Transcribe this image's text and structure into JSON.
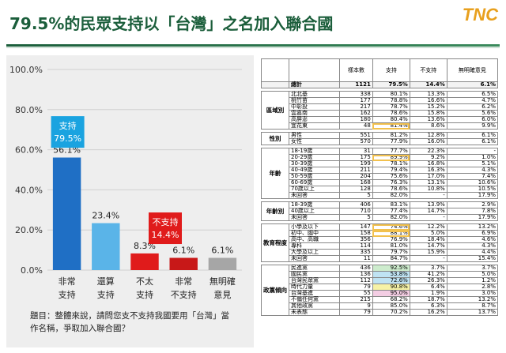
{
  "header": {
    "title": "79.5%的民眾支持以「台灣」之名加入聯合國",
    "logo": "TNC"
  },
  "chart_data": {
    "type": "bar",
    "categories": [
      "非常\n支持",
      "還算\n支持",
      "不太\n支持",
      "非常\n不支持",
      "無明確\n意見"
    ],
    "values": [
      56.1,
      23.4,
      8.3,
      6.1,
      6.1
    ],
    "value_labels": [
      "56.1%",
      "23.4%",
      "8.3%",
      "6.1%",
      "6.1%"
    ],
    "ylim": [
      0,
      100
    ],
    "yticks": [
      "0.0%",
      "20.0%",
      "40.0%",
      "60.0%",
      "80.0%",
      "100.0%"
    ],
    "colors": [
      "#1f6fc5",
      "#5ab4e8",
      "#e01b1b",
      "#c81818",
      "#a6a6a6"
    ],
    "annotations": [
      {
        "label": "支持",
        "value": "79.5%",
        "color": "#1aa3e0"
      },
      {
        "label": "不支持",
        "value": "14.4%",
        "color": "#e01b1b"
      }
    ]
  },
  "question": "題目：整體來說，請問您支不支持我國要用「台灣」當作名稱，爭取加入聯合國？",
  "table": {
    "headers": [
      "樣本數",
      "支持",
      "不支持",
      "無明確意見"
    ],
    "total": {
      "label": "總計",
      "n": "1121",
      "s": "79.5%",
      "ns": "14.4%",
      "nc": "6.1%"
    },
    "groups": [
      {
        "name": "區域別",
        "rows": [
          [
            "北北基",
            "338",
            "80.1%",
            "13.3%",
            "6.5%",
            ""
          ],
          [
            "桃竹苗",
            "177",
            "78.8%",
            "16.6%",
            "4.7%",
            ""
          ],
          [
            "中彰投",
            "217",
            "78.7%",
            "15.2%",
            "6.2%",
            ""
          ],
          [
            "雲嘉南",
            "162",
            "78.6%",
            "15.8%",
            "5.6%",
            ""
          ],
          [
            "高屏澎",
            "180",
            "80.4%",
            "13.6%",
            "6.0%",
            ""
          ],
          [
            "宜花東",
            "48",
            "81.4%",
            "8.6%",
            "9.9%",
            "hl"
          ]
        ]
      },
      {
        "name": "性別",
        "rows": [
          [
            "男性",
            "551",
            "81.2%",
            "12.8%",
            "6.1%",
            ""
          ],
          [
            "女性",
            "570",
            "77.9%",
            "16.0%",
            "6.1%",
            ""
          ]
        ]
      },
      {
        "name": "年齡",
        "rows": [
          [
            "18-19歲",
            "31",
            "77.7%",
            "22.3%",
            "-",
            ""
          ],
          [
            "20-29歲",
            "175",
            "89.9%",
            "9.2%",
            "1.0%",
            "hl"
          ],
          [
            "30-39歲",
            "199",
            "78.1%",
            "16.8%",
            "5.1%",
            ""
          ],
          [
            "40-49歲",
            "211",
            "79.4%",
            "16.3%",
            "4.3%",
            ""
          ],
          [
            "50-59歲",
            "204",
            "75.6%",
            "17.0%",
            "7.4%",
            ""
          ],
          [
            "60-69歲",
            "168",
            "76.3%",
            "13.1%",
            "10.6%",
            ""
          ],
          [
            "70歲以上",
            "128",
            "78.6%",
            "10.8%",
            "10.5%",
            ""
          ],
          [
            "未回答",
            "5",
            "82.0%",
            "-",
            "17.9%",
            ""
          ]
        ]
      },
      {
        "name": "年齡別",
        "rows": [
          [
            "18-39歲",
            "406",
            "83.1%",
            "13.9%",
            "2.9%",
            ""
          ],
          [
            "40歲以上",
            "710",
            "77.4%",
            "14.7%",
            "7.8%",
            ""
          ],
          [
            "未回答",
            "5",
            "82.0%",
            "-",
            "17.9%",
            ""
          ]
        ]
      },
      {
        "name": "教育程度",
        "rows": [
          [
            "小學及以下",
            "147",
            "74.6%",
            "12.2%",
            "13.2%",
            "hl"
          ],
          [
            "初中、國中",
            "158",
            "88.1%",
            "5.0%",
            "6.9%",
            "hl"
          ],
          [
            "高中、高職",
            "356",
            "76.9%",
            "18.4%",
            "4.6%",
            ""
          ],
          [
            "專科",
            "114",
            "81.0%",
            "14.7%",
            "4.3%",
            ""
          ],
          [
            "大學及以上",
            "335",
            "79.7%",
            "15.9%",
            "4.4%",
            ""
          ],
          [
            "未回答",
            "11",
            "84.7%",
            "-",
            "15.4%",
            ""
          ]
        ]
      },
      {
        "name": "政黨傾向",
        "rows": [
          [
            "民進黨",
            "436",
            "92.5%",
            "3.7%",
            "3.7%",
            "green"
          ],
          [
            "國民黨",
            "136",
            "53.8%",
            "41.2%",
            "5.0%",
            "blue"
          ],
          [
            "台灣民眾黨",
            "112",
            "72.6%",
            "26.3%",
            "1.2%",
            "blue"
          ],
          [
            "時代力量",
            "79",
            "90.8%",
            "6.4%",
            "2.8%",
            "yellow"
          ],
          [
            "台灣基進",
            "55",
            "95.0%",
            "1.9%",
            "3.0%",
            "pink"
          ],
          [
            "不偏任何黨",
            "215",
            "68.2%",
            "18.7%",
            "13.2%",
            ""
          ],
          [
            "其他政黨",
            "9",
            "85.0%",
            "6.3%",
            "8.7%",
            ""
          ],
          [
            "未表態",
            "79",
            "70.2%",
            "16.2%",
            "13.7%",
            ""
          ]
        ]
      }
    ]
  }
}
